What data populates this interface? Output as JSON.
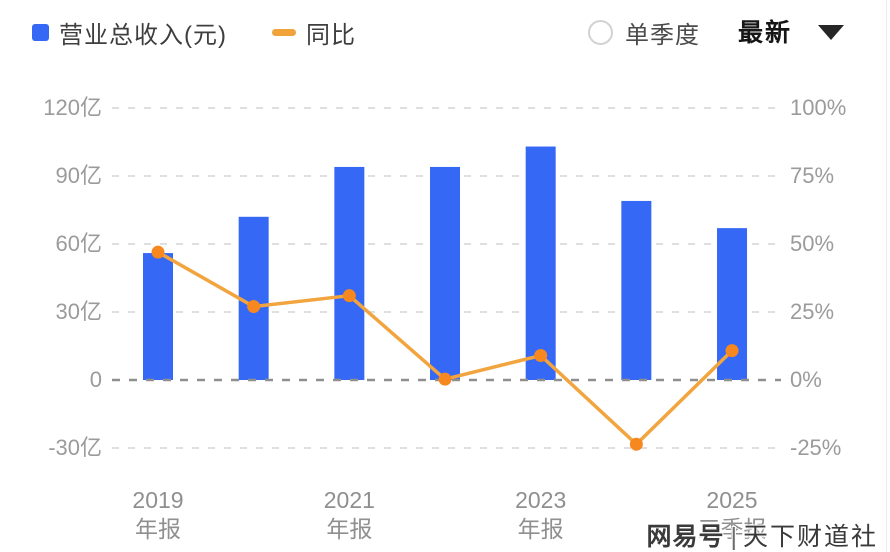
{
  "header": {
    "legend": [
      {
        "label": "营业总收入(元)",
        "marker": "square",
        "color": "#3568F4"
      },
      {
        "label": "同比",
        "marker": "dash",
        "color": "#F0A338"
      }
    ],
    "controls": {
      "radio_label": "单季度",
      "radio_checked": false,
      "dropdown_value": "最新"
    }
  },
  "chart_data": {
    "type": "bar+line",
    "categories": [
      "2019 年报",
      "",
      "2021 年报",
      "",
      "2023 年报",
      "",
      "2025 三季报"
    ],
    "series": [
      {
        "name": "营业总收入(元)",
        "type": "bar",
        "axis": "left",
        "unit": "亿",
        "color": "#3568F4",
        "values": [
          56,
          72,
          94,
          94,
          103,
          79,
          67
        ]
      },
      {
        "name": "同比",
        "type": "line",
        "axis": "right",
        "unit": "%",
        "color": "#F2A43E",
        "dot_color": "#F6881F",
        "values": [
          47,
          27,
          31,
          0.3,
          9,
          -23.6,
          10.8
        ]
      }
    ],
    "left_axis": {
      "title": "",
      "tick_labels": [
        "120亿",
        "90亿",
        "60亿",
        "30亿",
        "0",
        "-30亿"
      ],
      "tick_values": [
        120,
        90,
        60,
        30,
        0,
        -30
      ],
      "range": [
        -45,
        135
      ]
    },
    "right_axis": {
      "title": "",
      "tick_labels": [
        "100%",
        "75%",
        "50%",
        "25%",
        "0%",
        "-25%"
      ],
      "tick_values": [
        100,
        75,
        50,
        25,
        0,
        -25
      ],
      "range": [
        -37.5,
        112.5
      ]
    },
    "grid": {
      "dashed": true,
      "color": "#DFDFDF",
      "zero_line_color": "#8F8F8F"
    },
    "legend_position": "top-left",
    "title": ""
  },
  "watermark": {
    "brand": "网易号",
    "divider": "|",
    "site": "天下财道社"
  }
}
